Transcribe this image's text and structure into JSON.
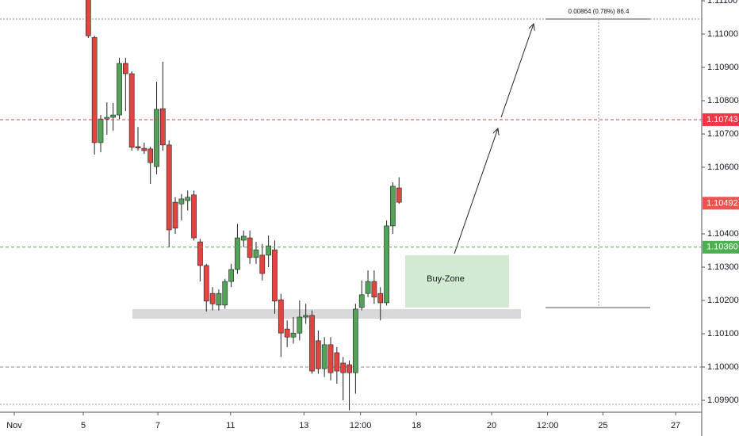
{
  "chart_data": {
    "type": "candlestick",
    "x": [
      0,
      1,
      2,
      3,
      4,
      5,
      6,
      7,
      8,
      9,
      10,
      11,
      12,
      13,
      14,
      15,
      16,
      17,
      18,
      19,
      20,
      21,
      22,
      23,
      24,
      25,
      26,
      27,
      28,
      29,
      30,
      31,
      32,
      33,
      34,
      35,
      36,
      37,
      38,
      39,
      40,
      41,
      42,
      43,
      44,
      45,
      46,
      47,
      48,
      49,
      50
    ],
    "open": [
      1.1112,
      1.1099,
      1.10674,
      1.10745,
      1.1075,
      1.10757,
      1.10912,
      1.10881,
      1.10662,
      1.10657,
      1.10655,
      1.10602,
      1.10776,
      1.10667,
      1.10495,
      1.1049,
      1.105,
      1.10517,
      1.10376,
      1.10305,
      1.10221,
      1.10186,
      1.10186,
      1.10257,
      1.10293,
      1.10381,
      1.10388,
      1.10329,
      1.10336,
      1.10336,
      1.10352,
      1.10202,
      1.10114,
      1.1009,
      1.10102,
      1.1015,
      1.10155,
      1.10079,
      1.09995,
      1.10067,
      1.10043,
      1.10012,
      1.10007,
      1.09983,
      1.10179,
      1.10221,
      1.10257,
      1.10221,
      1.10193,
      1.10424,
      1.10538
    ],
    "high": [
      1.1114,
      1.10995,
      1.10757,
      1.10795,
      1.10793,
      1.10929,
      1.10929,
      1.10888,
      1.10721,
      1.10674,
      1.10662,
      1.10857,
      1.10917,
      1.1068,
      1.1051,
      1.1052,
      1.1053,
      1.1053,
      1.10385,
      1.1031,
      1.1024,
      1.10233,
      1.10265,
      1.1031,
      1.1043,
      1.1041,
      1.1041,
      1.10376,
      1.1037,
      1.10395,
      1.1038,
      1.1022,
      1.1014,
      1.1015,
      1.102,
      1.1019,
      1.1017,
      1.1011,
      1.1009,
      1.1009,
      1.1006,
      1.1003,
      1.1002,
      1.1019,
      1.1026,
      1.1029,
      1.1029,
      1.1024,
      1.1044,
      1.10555,
      1.1057
    ],
    "low": [
      1.10988,
      1.10638,
      1.10645,
      1.10698,
      1.1071,
      1.10745,
      1.10769,
      1.1065,
      1.1065,
      1.1064,
      1.1055,
      1.10579,
      1.1065,
      1.1036,
      1.104,
      1.1044,
      1.1047,
      1.1038,
      1.10257,
      1.10167,
      1.1017,
      1.1017,
      1.10175,
      1.1024,
      1.1028,
      1.1036,
      1.1031,
      1.1031,
      1.1026,
      1.103,
      1.1016,
      1.1003,
      1.1006,
      1.1007,
      1.1008,
      1.1013,
      1.0998,
      1.0998,
      1.0997,
      1.0996,
      1.0995,
      1.099,
      1.0987,
      1.0992,
      1.1017,
      1.1021,
      1.1019,
      1.1014,
      1.10185,
      1.104,
      1.1049
    ],
    "close": [
      1.10995,
      1.10674,
      1.10745,
      1.1075,
      1.10757,
      1.10912,
      1.10881,
      1.1066,
      1.10658,
      1.1065,
      1.10614,
      1.10774,
      1.10667,
      1.10412,
      1.10417,
      1.10505,
      1.1051,
      1.10388,
      1.10305,
      1.10198,
      1.1019,
      1.10221,
      1.10257,
      1.10293,
      1.10388,
      1.10393,
      1.10329,
      1.10352,
      1.10281,
      1.10364,
      1.10198,
      1.10102,
      1.1009,
      1.10102,
      1.1015,
      1.10155,
      1.09988,
      1.09995,
      1.10067,
      1.09983,
      1.09988,
      1.09983,
      1.09983,
      1.10174,
      1.10217,
      1.10257,
      1.1021,
      1.10193,
      1.10424,
      1.10543,
      1.10495
    ],
    "up_color": "#53a25a",
    "down_color": "#e04540",
    "xlim": [
      -14.2,
      98.7
    ],
    "xticks": [
      {
        "value": -11.9,
        "label": "Nov"
      },
      {
        "value": -0.8,
        "label": "5"
      },
      {
        "value": 11.2,
        "label": "7"
      },
      {
        "value": 22.9,
        "label": "11"
      },
      {
        "value": 34.7,
        "label": "13"
      },
      {
        "value": 43.8,
        "label": "12:00"
      },
      {
        "value": 52.8,
        "label": "18"
      },
      {
        "value": 64.9,
        "label": "20"
      },
      {
        "value": 73.9,
        "label": "12:00"
      },
      {
        "value": 82.8,
        "label": "25"
      },
      {
        "value": 94.5,
        "label": "27"
      }
    ],
    "ylim": [
      1.098643,
      1.111024
    ],
    "yticks": [
      {
        "value": 1.111,
        "label": "1.11100"
      },
      {
        "value": 1.11,
        "label": "1.11000"
      },
      {
        "value": 1.109,
        "label": "1.10900"
      },
      {
        "value": 1.108,
        "label": "1.10800"
      },
      {
        "value": 1.107,
        "label": "1.10700"
      },
      {
        "value": 1.106,
        "label": "1.10600"
      },
      {
        "value": 1.104,
        "label": "1.10400"
      },
      {
        "value": 1.103,
        "label": "1.10300"
      },
      {
        "value": 1.102,
        "label": "1.10200"
      },
      {
        "value": 1.101,
        "label": "1.10100"
      },
      {
        "value": 1.1,
        "label": "1.10000"
      },
      {
        "value": 1.099,
        "label": "1.09900"
      }
    ],
    "levels": [
      {
        "value": 1.10743,
        "label": "1.10743",
        "color": "#f23645",
        "line": true
      },
      {
        "value": 1.10492,
        "label": "1.10492",
        "color": "#ef5350",
        "line": false
      },
      {
        "value": 1.1036,
        "label": "1.10360",
        "color": "#4caf50",
        "line": true
      }
    ],
    "zone_label": "Buy-Zone",
    "measure_label": "0.00864 (0.78%) 86.4"
  }
}
